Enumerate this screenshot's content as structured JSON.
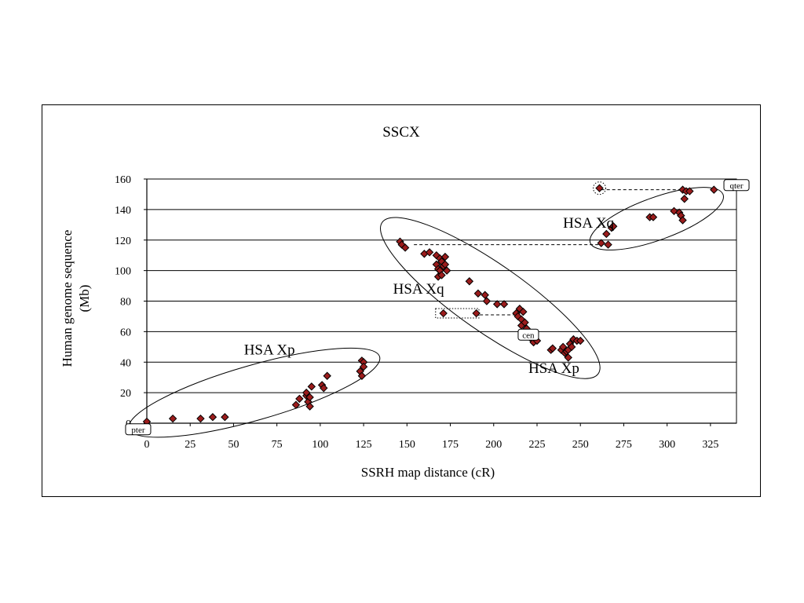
{
  "chart_data": {
    "type": "scatter",
    "title": "SSCX",
    "xlabel": "SSRH map distance (cR)",
    "ylabel_lines": [
      "Human genome sequence",
      "(Mb)"
    ],
    "xlim": [
      0,
      340
    ],
    "ylim": [
      0,
      160
    ],
    "xticks": [
      0,
      25,
      50,
      75,
      100,
      125,
      150,
      175,
      200,
      225,
      250,
      275,
      300,
      325
    ],
    "yticks": [
      0,
      20,
      40,
      60,
      80,
      100,
      120,
      140,
      160
    ],
    "grid": "horizontal",
    "marker_color": "#9b1c1c",
    "points": [
      {
        "x": 0,
        "y": 1
      },
      {
        "x": 15,
        "y": 3
      },
      {
        "x": 31,
        "y": 3
      },
      {
        "x": 38,
        "y": 4
      },
      {
        "x": 45,
        "y": 4
      },
      {
        "x": 86,
        "y": 12
      },
      {
        "x": 88,
        "y": 16
      },
      {
        "x": 92,
        "y": 18
      },
      {
        "x": 92,
        "y": 20
      },
      {
        "x": 93,
        "y": 14
      },
      {
        "x": 94,
        "y": 11
      },
      {
        "x": 94,
        "y": 17
      },
      {
        "x": 95,
        "y": 24
      },
      {
        "x": 101,
        "y": 25
      },
      {
        "x": 102,
        "y": 23
      },
      {
        "x": 104,
        "y": 31
      },
      {
        "x": 123,
        "y": 34
      },
      {
        "x": 124,
        "y": 31
      },
      {
        "x": 124,
        "y": 41
      },
      {
        "x": 125,
        "y": 40
      },
      {
        "x": 125,
        "y": 37
      },
      {
        "x": 146,
        "y": 119
      },
      {
        "x": 147,
        "y": 117
      },
      {
        "x": 149,
        "y": 115
      },
      {
        "x": 160,
        "y": 111
      },
      {
        "x": 163,
        "y": 112
      },
      {
        "x": 167,
        "y": 110
      },
      {
        "x": 167,
        "y": 104
      },
      {
        "x": 168,
        "y": 101
      },
      {
        "x": 168,
        "y": 96
      },
      {
        "x": 169,
        "y": 108
      },
      {
        "x": 169,
        "y": 100
      },
      {
        "x": 170,
        "y": 106
      },
      {
        "x": 170,
        "y": 97
      },
      {
        "x": 171,
        "y": 103
      },
      {
        "x": 172,
        "y": 109
      },
      {
        "x": 172,
        "y": 104
      },
      {
        "x": 173,
        "y": 100
      },
      {
        "x": 171,
        "y": 72
      },
      {
        "x": 186,
        "y": 93
      },
      {
        "x": 190,
        "y": 72
      },
      {
        "x": 191,
        "y": 85
      },
      {
        "x": 195,
        "y": 84
      },
      {
        "x": 196,
        "y": 80
      },
      {
        "x": 202,
        "y": 78
      },
      {
        "x": 206,
        "y": 78
      },
      {
        "x": 213,
        "y": 72
      },
      {
        "x": 214,
        "y": 70
      },
      {
        "x": 215,
        "y": 75
      },
      {
        "x": 216,
        "y": 68
      },
      {
        "x": 216,
        "y": 64
      },
      {
        "x": 217,
        "y": 73
      },
      {
        "x": 218,
        "y": 66
      },
      {
        "x": 219,
        "y": 62
      },
      {
        "x": 222,
        "y": 55
      },
      {
        "x": 223,
        "y": 53
      },
      {
        "x": 225,
        "y": 54
      },
      {
        "x": 233,
        "y": 48
      },
      {
        "x": 234,
        "y": 49
      },
      {
        "x": 239,
        "y": 48
      },
      {
        "x": 240,
        "y": 50
      },
      {
        "x": 241,
        "y": 46
      },
      {
        "x": 242,
        "y": 47
      },
      {
        "x": 243,
        "y": 43
      },
      {
        "x": 243,
        "y": 48
      },
      {
        "x": 244,
        "y": 52
      },
      {
        "x": 245,
        "y": 50
      },
      {
        "x": 246,
        "y": 55
      },
      {
        "x": 248,
        "y": 54
      },
      {
        "x": 250,
        "y": 54
      },
      {
        "x": 261,
        "y": 154
      },
      {
        "x": 262,
        "y": 118
      },
      {
        "x": 265,
        "y": 124
      },
      {
        "x": 266,
        "y": 117
      },
      {
        "x": 268,
        "y": 128
      },
      {
        "x": 269,
        "y": 129
      },
      {
        "x": 290,
        "y": 135
      },
      {
        "x": 292,
        "y": 135
      },
      {
        "x": 304,
        "y": 139
      },
      {
        "x": 307,
        "y": 138
      },
      {
        "x": 308,
        "y": 136
      },
      {
        "x": 309,
        "y": 133
      },
      {
        "x": 309,
        "y": 153
      },
      {
        "x": 310,
        "y": 147
      },
      {
        "x": 311,
        "y": 152
      },
      {
        "x": 313,
        "y": 152
      },
      {
        "x": 327,
        "y": 153
      }
    ],
    "annotations": [
      {
        "text": "HSA Xp",
        "x": 56,
        "y": 45
      },
      {
        "text": "HSA Xq",
        "x": 142,
        "y": 85
      },
      {
        "text": "HSA Xp",
        "x": 220,
        "y": 33
      },
      {
        "text": "HSA Xq",
        "x": 240,
        "y": 128
      }
    ],
    "boxed_labels": [
      {
        "text": "pter",
        "x": -5,
        "y": -4
      },
      {
        "text": "qter",
        "x": 340,
        "y": 156
      },
      {
        "text": "cen",
        "x": 220,
        "y": 58
      }
    ],
    "ellipses": [
      {
        "cx": 62,
        "cy": 20,
        "rx": 166,
        "ry": 35,
        "angle_deg": -16
      },
      {
        "cx": 198,
        "cy": 82,
        "rx": 168,
        "ry": 43,
        "angle_deg": 35
      },
      {
        "cx": 294,
        "cy": 134,
        "rx": 90,
        "ry": 27,
        "angle_deg": -20
      }
    ],
    "dashed_links": [
      {
        "from": [
          262,
          153
        ],
        "to": [
          309,
          153
        ]
      },
      {
        "from": [
          154,
          117
        ],
        "to": [
          262,
          117
        ]
      },
      {
        "from": [
          192,
          71
        ],
        "to": [
          213,
          71
        ]
      }
    ],
    "dotted_highlights": [
      {
        "x": 261,
        "y": 154,
        "kind": "circle"
      },
      {
        "x": 179,
        "y": 72,
        "kind": "rect",
        "w_units": 25
      }
    ]
  }
}
